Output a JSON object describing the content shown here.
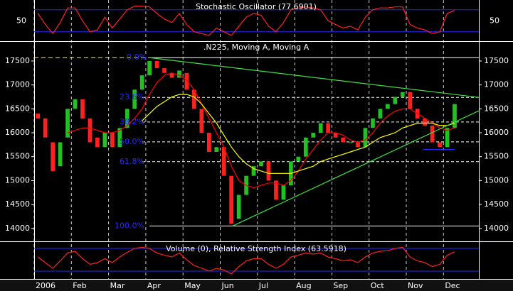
{
  "chart_data": [
    {
      "type": "line",
      "title": "Stochastic Oscillator (77.6901)",
      "x": [
        0.1,
        0.3,
        0.5,
        0.7,
        0.9,
        1.1,
        1.3,
        1.5,
        1.7,
        1.9,
        2.1,
        2.3,
        2.5,
        2.7,
        2.9,
        3.1,
        3.3,
        3.5,
        3.7,
        3.9,
        4.1,
        4.3,
        4.5,
        4.7,
        4.9,
        5.1,
        5.3,
        5.5,
        5.7,
        5.9,
        6.1,
        6.3,
        6.5,
        6.7,
        6.9,
        7.1,
        7.3,
        7.5,
        7.7,
        7.9,
        8.1,
        8.3,
        8.5,
        8.7,
        8.9,
        9.1,
        9.3,
        9.5,
        9.7,
        9.9,
        10.1,
        10.3,
        10.5,
        10.7,
        10.9,
        11.1,
        11.3
      ],
      "xlim": [
        0,
        11.95
      ],
      "series": [
        {
          "color": "#ff2020",
          "values": [
            70,
            40,
            15,
            45,
            85,
            85,
            50,
            20,
            25,
            60,
            30,
            55,
            80,
            90,
            90,
            88,
            70,
            55,
            45,
            70,
            40,
            20,
            15,
            10,
            30,
            20,
            10,
            35,
            60,
            70,
            65,
            35,
            20,
            45,
            80,
            85,
            88,
            85,
            80,
            50,
            40,
            30,
            35,
            25,
            60,
            80,
            85,
            85,
            88,
            88,
            40,
            30,
            25,
            15,
            20,
            70,
            78
          ]
        }
      ],
      "ylim": [
        0,
        100
      ],
      "yticks": [
        50
      ],
      "levels": [
        20,
        80
      ],
      "level_color": "#2828ff"
    },
    {
      "type": "candlestick",
      "title": ".N225, Moving A, Moving A",
      "x": [
        0.1,
        0.3,
        0.5,
        0.7,
        0.9,
        1.1,
        1.3,
        1.5,
        1.7,
        1.9,
        2.1,
        2.3,
        2.5,
        2.7,
        2.9,
        3.1,
        3.3,
        3.5,
        3.7,
        3.9,
        4.1,
        4.3,
        4.5,
        4.7,
        4.9,
        5.1,
        5.3,
        5.5,
        5.7,
        5.9,
        6.1,
        6.3,
        6.5,
        6.7,
        6.9,
        7.1,
        7.3,
        7.5,
        7.7,
        7.9,
        8.1,
        8.3,
        8.5,
        8.7,
        8.9,
        9.1,
        9.3,
        9.5,
        9.7,
        9.9,
        10.1,
        10.3,
        10.5,
        10.7,
        10.9,
        11.1,
        11.3
      ],
      "xlim": [
        0,
        11.95
      ],
      "open": [
        16400,
        16300,
        15800,
        15300,
        15900,
        16500,
        16700,
        16300,
        15900,
        15700,
        16000,
        15700,
        16100,
        16500,
        16900,
        17200,
        17500,
        17350,
        17250,
        17150,
        17250,
        16900,
        16500,
        16000,
        15600,
        15700,
        15100,
        14200,
        14700,
        15100,
        15300,
        15400,
        15000,
        14600,
        14900,
        15400,
        15500,
        15900,
        16000,
        16200,
        16000,
        15900,
        15800,
        15800,
        15700,
        16100,
        16300,
        16500,
        16600,
        16750,
        16850,
        16500,
        16300,
        16150,
        15800,
        15700,
        16100
      ],
      "close": [
        16300,
        15900,
        15200,
        15800,
        16500,
        16700,
        16300,
        15800,
        15700,
        16000,
        15700,
        16100,
        16500,
        16900,
        17200,
        17500,
        17350,
        17250,
        17150,
        17300,
        16900,
        16500,
        16000,
        15600,
        15700,
        15100,
        14100,
        14700,
        15100,
        15300,
        15400,
        15000,
        14600,
        14900,
        15400,
        15500,
        15900,
        16000,
        16200,
        16000,
        15900,
        15800,
        15800,
        15700,
        16100,
        16300,
        16500,
        16600,
        16750,
        16850,
        16500,
        16300,
        16150,
        15800,
        15700,
        16100,
        16600
      ],
      "up_color": "#22c022",
      "down_color": "#ff2020",
      "series": [
        {
          "color": "#ff0000",
          "values": [
            null,
            null,
            null,
            null,
            16000,
            16050,
            16100,
            16100,
            16050,
            16000,
            16000,
            16050,
            16150,
            16300,
            16500,
            16800,
            17050,
            17200,
            17250,
            17200,
            17100,
            16900,
            16600,
            16300,
            16000,
            15700,
            15300,
            15000,
            14900,
            14850,
            14900,
            14950,
            14950,
            14900,
            15000,
            15200,
            15450,
            15650,
            15850,
            16000,
            16000,
            15950,
            15850,
            15800,
            15850,
            16000,
            16200,
            16350,
            16450,
            16500,
            16500,
            16400,
            16300,
            16200,
            16100,
            16050,
            16100
          ]
        },
        {
          "color": "#ffff00",
          "values": [
            null,
            null,
            null,
            null,
            null,
            null,
            null,
            null,
            null,
            null,
            null,
            null,
            null,
            null,
            16250,
            16400,
            16550,
            16650,
            16750,
            16800,
            16800,
            16750,
            16600,
            16400,
            16200,
            15950,
            15700,
            15500,
            15350,
            15250,
            15200,
            15150,
            15150,
            15150,
            15150,
            15200,
            15250,
            15300,
            15400,
            15450,
            15500,
            15550,
            15600,
            15650,
            15700,
            15800,
            15900,
            15950,
            16000,
            16100,
            16150,
            16200,
            16200,
            16200,
            16150,
            16150,
            16200
          ]
        }
      ],
      "ylim": [
        13730,
        17885
      ],
      "yticks": [
        14000,
        14500,
        15000,
        15500,
        16000,
        16500,
        17000,
        17500
      ],
      "xticks": [
        {
          "value": 0,
          "label": "2006"
        },
        {
          "value": 1,
          "label": "Feb"
        },
        {
          "value": 2,
          "label": "Mar"
        },
        {
          "value": 3,
          "label": "Apr"
        },
        {
          "value": 4,
          "label": "May"
        },
        {
          "value": 5,
          "label": "Jun"
        },
        {
          "value": 6,
          "label": "Jul"
        },
        {
          "value": 7,
          "label": "Aug"
        },
        {
          "value": 8,
          "label": "Sep"
        },
        {
          "value": 9,
          "label": "Oct"
        },
        {
          "value": 10,
          "label": "Nov"
        },
        {
          "value": 11,
          "label": "Dec"
        }
      ],
      "fibonacci": [
        {
          "value": 17570,
          "label": "0.0%"
        },
        {
          "value": 16739,
          "label": "23.6%"
        },
        {
          "value": 16225,
          "label": "38.2%"
        },
        {
          "value": 15810,
          "label": "50.0%"
        },
        {
          "value": 15395,
          "label": "61.8%"
        },
        {
          "value": 14050,
          "label": "100.0%"
        }
      ],
      "fibonacci_color": "#2828ff",
      "trendlines": [
        {
          "color": "#40e040",
          "x": [
            3.1,
            11.95
          ],
          "y": [
            17570,
            16740
          ]
        },
        {
          "color": "#40e040",
          "x": [
            5.33,
            11.95
          ],
          "y": [
            14050,
            16460
          ]
        },
        {
          "color": "#2828ff",
          "x": [
            10.45,
            11.3
          ],
          "y": [
            15650,
            15650
          ]
        }
      ]
    },
    {
      "type": "line",
      "title": "Volume (0), Relative Strength Index (63.5918)",
      "x": [
        0.1,
        0.3,
        0.5,
        0.7,
        0.9,
        1.1,
        1.3,
        1.5,
        1.7,
        1.9,
        2.1,
        2.3,
        2.5,
        2.7,
        2.9,
        3.1,
        3.3,
        3.5,
        3.7,
        3.9,
        4.1,
        4.3,
        4.5,
        4.7,
        4.9,
        5.1,
        5.3,
        5.5,
        5.7,
        5.9,
        6.1,
        6.3,
        6.5,
        6.7,
        6.9,
        7.1,
        7.3,
        7.5,
        7.7,
        7.9,
        8.1,
        8.3,
        8.5,
        8.7,
        8.9,
        9.1,
        9.3,
        9.5,
        9.7,
        9.9,
        10.1,
        10.3,
        10.5,
        10.7,
        10.9,
        11.1,
        11.3
      ],
      "xlim": [
        0,
        11.95
      ],
      "series": [
        {
          "color": "#ff2020",
          "values": [
            55,
            45,
            35,
            48,
            62,
            65,
            52,
            42,
            45,
            52,
            45,
            55,
            63,
            70,
            72,
            70,
            62,
            58,
            55,
            62,
            50,
            40,
            35,
            30,
            35,
            32,
            25,
            38,
            48,
            52,
            52,
            42,
            35,
            42,
            55,
            58,
            62,
            60,
            62,
            55,
            52,
            48,
            50,
            45,
            55,
            62,
            65,
            66,
            70,
            72,
            55,
            48,
            45,
            38,
            42,
            58,
            64
          ]
        }
      ],
      "ylim": [
        20,
        80
      ],
      "levels": [
        30,
        70
      ],
      "level_color": "#2828ff"
    }
  ]
}
